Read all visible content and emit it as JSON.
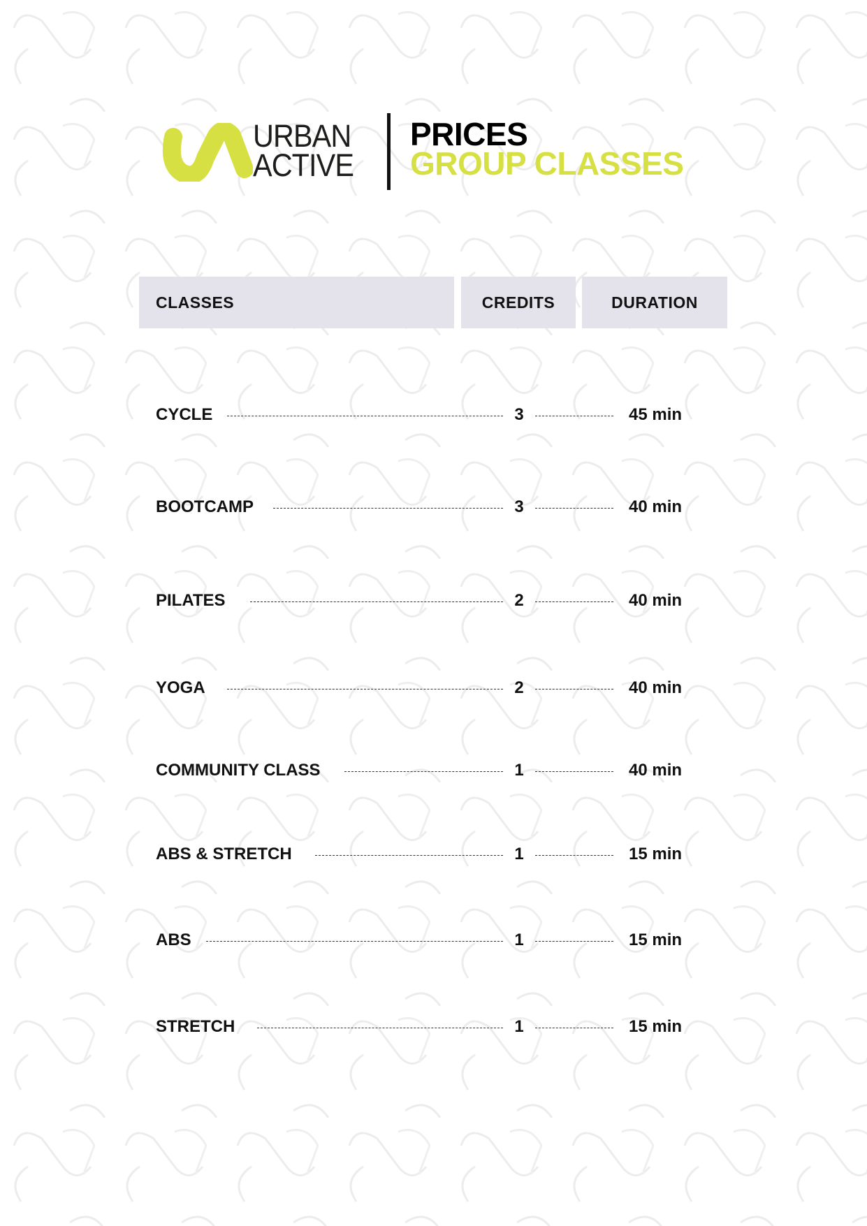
{
  "brand": {
    "line1": "URBAN",
    "line2": "ACTIVE",
    "accent_color": "#d6e043"
  },
  "title": {
    "line1": "PRICES",
    "line2": "GROUP CLASSES"
  },
  "table": {
    "headers": [
      "CLASSES",
      "CREDITS",
      "DURATION"
    ],
    "rows": [
      {
        "name": "CYCLE",
        "credits": "3",
        "duration": "45 min"
      },
      {
        "name": "BOOTCAMP",
        "credits": "3",
        "duration": "40 min"
      },
      {
        "name": "PILATES",
        "credits": "2",
        "duration": "40 min"
      },
      {
        "name": "YOGA",
        "credits": "2",
        "duration": "40 min"
      },
      {
        "name": "COMMUNITY CLASS",
        "credits": "1",
        "duration": "40 min"
      },
      {
        "name": "ABS & STRETCH",
        "credits": "1",
        "duration": "15 min"
      },
      {
        "name": "ABS",
        "credits": "1",
        "duration": "15 min"
      },
      {
        "name": "STRETCH",
        "credits": "1",
        "duration": "15 min"
      }
    ]
  }
}
